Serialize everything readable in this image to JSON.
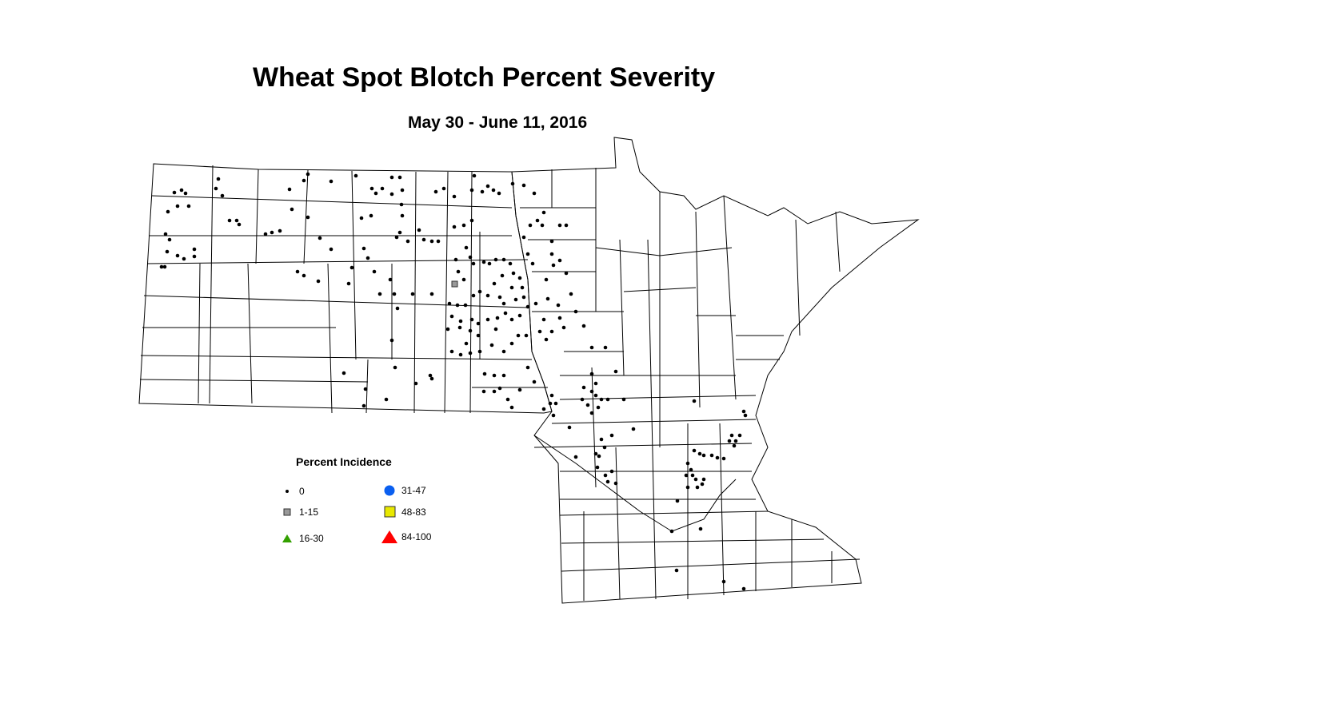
{
  "title": "Wheat Spot Blotch Percent Severity",
  "subtitle": "May 30 - June 11, 2016",
  "legend": {
    "title": "Percent Incidence",
    "items": [
      {
        "label": "0",
        "symbol": "small-dot",
        "color": "#000000"
      },
      {
        "label": "1-15",
        "symbol": "square",
        "color": "#999999"
      },
      {
        "label": "16-30",
        "symbol": "triangle",
        "color": "#33a000"
      },
      {
        "label": "31-47",
        "symbol": "circle",
        "color": "#0a5ff0"
      },
      {
        "label": "48-83",
        "symbol": "square",
        "color": "#e8e800"
      },
      {
        "label": "84-100",
        "symbol": "triangle",
        "color": "#ff0000"
      }
    ]
  }
}
